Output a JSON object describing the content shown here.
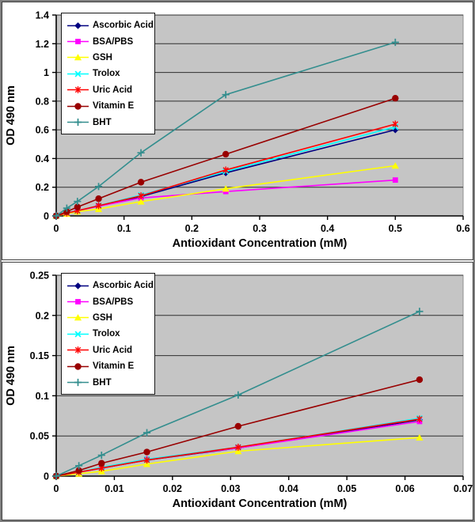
{
  "axis_titles": {
    "x": "Antioxidant Concentration (mM)",
    "y": "OD 490 nm"
  },
  "plot_style": {
    "plot_bg": "#c5c5c5",
    "gridline_color": "#2e2e2e",
    "axis_color": "#000000",
    "frame_color": "#3f3f3f"
  },
  "legend_entries": [
    "Ascorbic Acid",
    "BSA/PBS",
    "GSH",
    "Trolox",
    "Uric Acid",
    "Vitamin E",
    "BHT"
  ],
  "chart_data": [
    {
      "type": "line",
      "title": "",
      "xlabel": "Antioxidant Concentration (mM)",
      "ylabel": "OD 490 nm",
      "xlim": [
        0,
        0.6
      ],
      "ylim": [
        0,
        1.4
      ],
      "xticks": [
        0,
        0.1,
        0.2,
        0.3,
        0.4,
        0.5,
        0.6
      ],
      "xtick_labels": [
        "0",
        "0.1",
        "0.2",
        "0.3",
        "0.4",
        "0.5",
        "0.6"
      ],
      "yticks": [
        0,
        0.2,
        0.4,
        0.6,
        0.8,
        1.0,
        1.2,
        1.4
      ],
      "ytick_labels": [
        "0",
        "0.2",
        "0.4",
        "0.6",
        "0.8",
        "1",
        "1.2",
        "1.4"
      ],
      "grid": "horizontal",
      "legend_position": "inside-top-left",
      "plot_bg": "#c5c5c5",
      "x": [
        0,
        0.0156,
        0.0313,
        0.0625,
        0.125,
        0.25,
        0.5
      ],
      "series": [
        {
          "name": "Ascorbic Acid",
          "color": "#000080",
          "marker": "diamond",
          "values": [
            0,
            0.02,
            0.035,
            0.07,
            0.135,
            0.3,
            0.6
          ]
        },
        {
          "name": "BSA/PBS",
          "color": "#ff00ff",
          "marker": "square",
          "values": [
            0,
            0.02,
            0.035,
            0.068,
            0.125,
            0.17,
            0.25
          ]
        },
        {
          "name": "GSH",
          "color": "#ffff00",
          "marker": "triangle",
          "values": [
            0,
            0.015,
            0.03,
            0.048,
            0.1,
            0.19,
            0.35
          ]
        },
        {
          "name": "Trolox",
          "color": "#00ffff",
          "marker": "x",
          "values": [
            0,
            0.021,
            0.036,
            0.072,
            0.145,
            0.31,
            0.62
          ]
        },
        {
          "name": "Uric Acid",
          "color": "#ff0000",
          "marker": "asterisk",
          "values": [
            0,
            0.02,
            0.036,
            0.071,
            0.14,
            0.32,
            0.64
          ]
        },
        {
          "name": "Vitamin E",
          "color": "#990000",
          "marker": "circle",
          "values": [
            0,
            0.03,
            0.062,
            0.12,
            0.235,
            0.43,
            0.82
          ]
        },
        {
          "name": "BHT",
          "color": "#338e8e",
          "marker": "plus",
          "values": [
            0,
            0.054,
            0.101,
            0.205,
            0.44,
            0.845,
            1.21
          ]
        }
      ]
    },
    {
      "type": "line",
      "title": "",
      "xlabel": "Antioxidant Concentration (mM)",
      "ylabel": "OD 490 nm",
      "xlim": [
        0,
        0.07
      ],
      "ylim": [
        0,
        0.25
      ],
      "xticks": [
        0,
        0.01,
        0.02,
        0.03,
        0.04,
        0.05,
        0.06,
        0.07
      ],
      "xtick_labels": [
        "0",
        "0.01",
        "0.02",
        "0.03",
        "0.04",
        "0.05",
        "0.06",
        "0.07"
      ],
      "yticks": [
        0,
        0.05,
        0.1,
        0.15,
        0.2,
        0.25
      ],
      "ytick_labels": [
        "0",
        "0.05",
        "0.1",
        "0.15",
        "0.2",
        "0.25"
      ],
      "grid": "horizontal",
      "legend_position": "inside-top-left",
      "plot_bg": "#c5c5c5",
      "x": [
        0,
        0.0039,
        0.0078,
        0.0156,
        0.0313,
        0.0625
      ],
      "series": [
        {
          "name": "Ascorbic Acid",
          "color": "#000080",
          "marker": "diamond",
          "values": [
            0,
            0.005,
            0.01,
            0.02,
            0.035,
            0.07
          ]
        },
        {
          "name": "BSA/PBS",
          "color": "#ff00ff",
          "marker": "square",
          "values": [
            0,
            0.005,
            0.01,
            0.021,
            0.035,
            0.068
          ]
        },
        {
          "name": "GSH",
          "color": "#ffff00",
          "marker": "triangle",
          "values": [
            0,
            0.003,
            0.006,
            0.015,
            0.031,
            0.048
          ]
        },
        {
          "name": "Trolox",
          "color": "#00ffff",
          "marker": "x",
          "values": [
            0,
            0.005,
            0.011,
            0.021,
            0.036,
            0.072
          ]
        },
        {
          "name": "Uric Acid",
          "color": "#ff0000",
          "marker": "asterisk",
          "values": [
            0,
            0.005,
            0.01,
            0.02,
            0.036,
            0.071
          ]
        },
        {
          "name": "Vitamin E",
          "color": "#990000",
          "marker": "circle",
          "values": [
            0,
            0.007,
            0.016,
            0.03,
            0.062,
            0.12
          ]
        },
        {
          "name": "BHT",
          "color": "#338e8e",
          "marker": "plus",
          "values": [
            0,
            0.013,
            0.026,
            0.054,
            0.101,
            0.205
          ]
        }
      ]
    }
  ]
}
